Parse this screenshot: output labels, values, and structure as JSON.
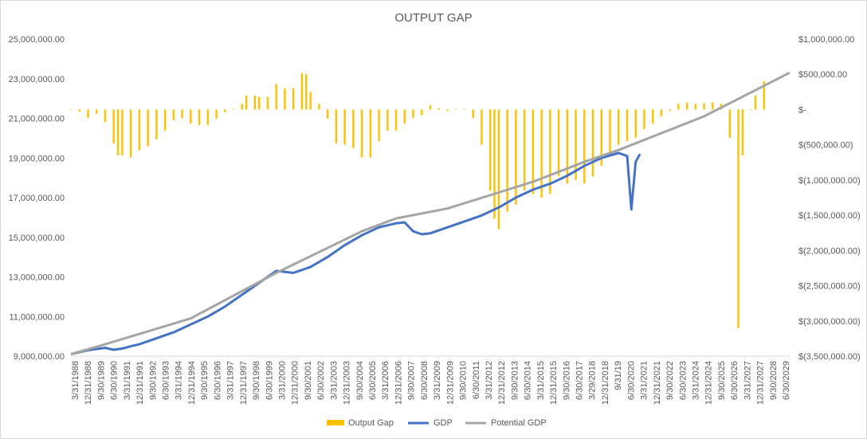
{
  "chart_data": {
    "type": "combo-bar-line",
    "title": "OUTPUT GAP",
    "left_axis": {
      "min": 9000000,
      "max": 25000000,
      "step": 2000000,
      "tick_labels": [
        "9,000,000.00",
        "11,000,000.00",
        "13,000,000.00",
        "15,000,000.00",
        "17,000,000.00",
        "19,000,000.00",
        "21,000,000.00",
        "23,000,000.00",
        "25,000,000.00"
      ]
    },
    "right_axis": {
      "min": -3500000,
      "max": 1000000,
      "step": 500000,
      "tick_labels": [
        "$(3,500,000.00)",
        "$(3,000,000.00)",
        "$(2,500,000.00)",
        "$(2,000,000.00)",
        "$(1,500,000.00)",
        "$(1,000,000.00)",
        "$(500,000.00)",
        "$-",
        "$500,000.00",
        "$1,000,000.00"
      ]
    },
    "x_axis": {
      "start_year": 1988,
      "end_year": 2029,
      "tick_labels": [
        "3/31/1988",
        "12/31/1988",
        "9/30/1989",
        "6/30/1990",
        "3/31/1991",
        "12/31/1991",
        "9/30/1992",
        "6/30/1993",
        "3/31/1994",
        "12/31/1994",
        "9/30/1995",
        "6/30/1996",
        "3/31/1997",
        "12/31/1997",
        "9/30/1998",
        "6/30/1999",
        "3/31/2000",
        "12/31/2000",
        "9/30/2001",
        "6/30/2002",
        "3/31/2003",
        "12/31/2003",
        "9/30/2004",
        "6/30/2005",
        "3/31/2006",
        "12/31/2006",
        "9/30/2007",
        "6/30/2008",
        "3/31/2009",
        "12/31/2009",
        "9/30/2010",
        "6/30/2011",
        "3/31/2012",
        "12/31/2012",
        "9/30/2013",
        "6/30/2014",
        "3/31/2015",
        "12/31/2015",
        "9/30/2016",
        "6/30/2017",
        "3/29/2018",
        "12/31/2018",
        "9/31/19",
        "6/30/2020",
        "3/31/2021",
        "12/31/2021",
        "9/30/2022",
        "6/30/2023",
        "3/31/2024",
        "12/31/2024",
        "9/30/2025",
        "6/30/2026",
        "3/31/2027",
        "12/31/2027",
        "9/30/2028",
        "6/30/2029"
      ]
    },
    "legend": {
      "position": "bottom"
    },
    "grid": false,
    "series": [
      {
        "name": "Output Gap",
        "kind": "bar",
        "axis": "right",
        "color": "#FFC000",
        "points": [
          [
            1988.0,
            0
          ],
          [
            1988.5,
            -30000
          ],
          [
            1989.0,
            -120000
          ],
          [
            1989.5,
            -60000
          ],
          [
            1990.0,
            -180000
          ],
          [
            1990.5,
            -480000
          ],
          [
            1990.75,
            -650000
          ],
          [
            1991.0,
            -650000
          ],
          [
            1991.5,
            -680000
          ],
          [
            1992.0,
            -580000
          ],
          [
            1992.5,
            -520000
          ],
          [
            1993.0,
            -420000
          ],
          [
            1993.5,
            -300000
          ],
          [
            1994.0,
            -150000
          ],
          [
            1994.5,
            -120000
          ],
          [
            1995.0,
            -200000
          ],
          [
            1995.5,
            -220000
          ],
          [
            1996.0,
            -220000
          ],
          [
            1996.5,
            -130000
          ],
          [
            1997.0,
            -40000
          ],
          [
            1997.5,
            10000
          ],
          [
            1998.0,
            80000
          ],
          [
            1998.25,
            200000
          ],
          [
            1998.75,
            200000
          ],
          [
            1999.0,
            180000
          ],
          [
            1999.5,
            180000
          ],
          [
            2000.0,
            360000
          ],
          [
            2000.5,
            300000
          ],
          [
            2001.0,
            300000
          ],
          [
            2001.5,
            520000
          ],
          [
            2001.75,
            500000
          ],
          [
            2002.0,
            250000
          ],
          [
            2002.5,
            80000
          ],
          [
            2003.0,
            -130000
          ],
          [
            2003.5,
            -480000
          ],
          [
            2004.0,
            -500000
          ],
          [
            2004.5,
            -550000
          ],
          [
            2005.0,
            -680000
          ],
          [
            2005.5,
            -680000
          ],
          [
            2006.0,
            -450000
          ],
          [
            2006.5,
            -300000
          ],
          [
            2007.0,
            -300000
          ],
          [
            2007.5,
            -200000
          ],
          [
            2008.0,
            -120000
          ],
          [
            2008.5,
            -80000
          ],
          [
            2009.0,
            60000
          ],
          [
            2009.5,
            20000
          ],
          [
            2010.0,
            -20000
          ],
          [
            2010.5,
            10000
          ],
          [
            2011.0,
            10000
          ],
          [
            2011.5,
            -120000
          ],
          [
            2012.0,
            -500000
          ],
          [
            2012.5,
            -1150000
          ],
          [
            2012.75,
            -1550000
          ],
          [
            2013.0,
            -1700000
          ],
          [
            2013.5,
            -1450000
          ],
          [
            2014.0,
            -1350000
          ],
          [
            2014.5,
            -1150000
          ],
          [
            2015.0,
            -1200000
          ],
          [
            2015.5,
            -1250000
          ],
          [
            2016.0,
            -1200000
          ],
          [
            2016.5,
            -950000
          ],
          [
            2017.0,
            -1050000
          ],
          [
            2017.5,
            -1000000
          ],
          [
            2018.0,
            -1050000
          ],
          [
            2018.5,
            -950000
          ],
          [
            2019.0,
            -800000
          ],
          [
            2019.5,
            -600000
          ],
          [
            2020.0,
            -500000
          ],
          [
            2020.5,
            -450000
          ],
          [
            2021.0,
            -400000
          ],
          [
            2021.5,
            -280000
          ],
          [
            2022.0,
            -200000
          ],
          [
            2022.5,
            -100000
          ],
          [
            2023.0,
            -20000
          ],
          [
            2023.5,
            80000
          ],
          [
            2024.0,
            100000
          ],
          [
            2024.5,
            80000
          ],
          [
            2025.0,
            90000
          ],
          [
            2025.5,
            100000
          ],
          [
            2026.0,
            80000
          ],
          [
            2026.5,
            -400000
          ],
          [
            2027.0,
            -3100000
          ],
          [
            2027.25,
            -650000
          ],
          [
            2027.75,
            0
          ],
          [
            2028.0,
            200000
          ],
          [
            2028.5,
            400000
          ]
        ]
      },
      {
        "name": "GDP",
        "kind": "line",
        "axis": "left",
        "color": "#4472C4",
        "points": [
          [
            1988.0,
            9100000
          ],
          [
            1989.0,
            9300000
          ],
          [
            1990.0,
            9420000
          ],
          [
            1990.5,
            9320000
          ],
          [
            1991.0,
            9380000
          ],
          [
            1991.5,
            9500000
          ],
          [
            1992.0,
            9600000
          ],
          [
            1993.0,
            9900000
          ],
          [
            1994.0,
            10200000
          ],
          [
            1995.0,
            10600000
          ],
          [
            1996.0,
            11000000
          ],
          [
            1997.0,
            11500000
          ],
          [
            1998.0,
            12100000
          ],
          [
            1999.0,
            12700000
          ],
          [
            2000.0,
            13300000
          ],
          [
            2000.5,
            13250000
          ],
          [
            2001.0,
            13200000
          ],
          [
            2002.0,
            13500000
          ],
          [
            2003.0,
            14000000
          ],
          [
            2004.0,
            14600000
          ],
          [
            2005.0,
            15100000
          ],
          [
            2006.0,
            15500000
          ],
          [
            2007.0,
            15700000
          ],
          [
            2007.5,
            15750000
          ],
          [
            2008.0,
            15300000
          ],
          [
            2008.5,
            15150000
          ],
          [
            2009.0,
            15200000
          ],
          [
            2010.0,
            15500000
          ],
          [
            2011.0,
            15800000
          ],
          [
            2012.0,
            16100000
          ],
          [
            2013.0,
            16500000
          ],
          [
            2014.0,
            17000000
          ],
          [
            2015.0,
            17400000
          ],
          [
            2016.0,
            17700000
          ],
          [
            2017.0,
            18100000
          ],
          [
            2018.0,
            18600000
          ],
          [
            2019.0,
            19000000
          ],
          [
            2020.0,
            19250000
          ],
          [
            2020.5,
            19100000
          ],
          [
            2020.75,
            16400000
          ],
          [
            2021.0,
            18800000
          ],
          [
            2021.25,
            19200000
          ]
        ]
      },
      {
        "name": "Potential GDP",
        "kind": "line",
        "axis": "left",
        "color": "#A5A5A5",
        "points": [
          [
            1988.0,
            9100000
          ],
          [
            1990.0,
            9600000
          ],
          [
            1995.0,
            10900000
          ],
          [
            2000.0,
            13200000
          ],
          [
            2005.0,
            15300000
          ],
          [
            2007.0,
            15950000
          ],
          [
            2010.0,
            16450000
          ],
          [
            2015.0,
            17800000
          ],
          [
            2018.0,
            18800000
          ],
          [
            2020.0,
            19400000
          ],
          [
            2025.0,
            21100000
          ],
          [
            2029.99,
            23300000
          ]
        ]
      }
    ]
  }
}
